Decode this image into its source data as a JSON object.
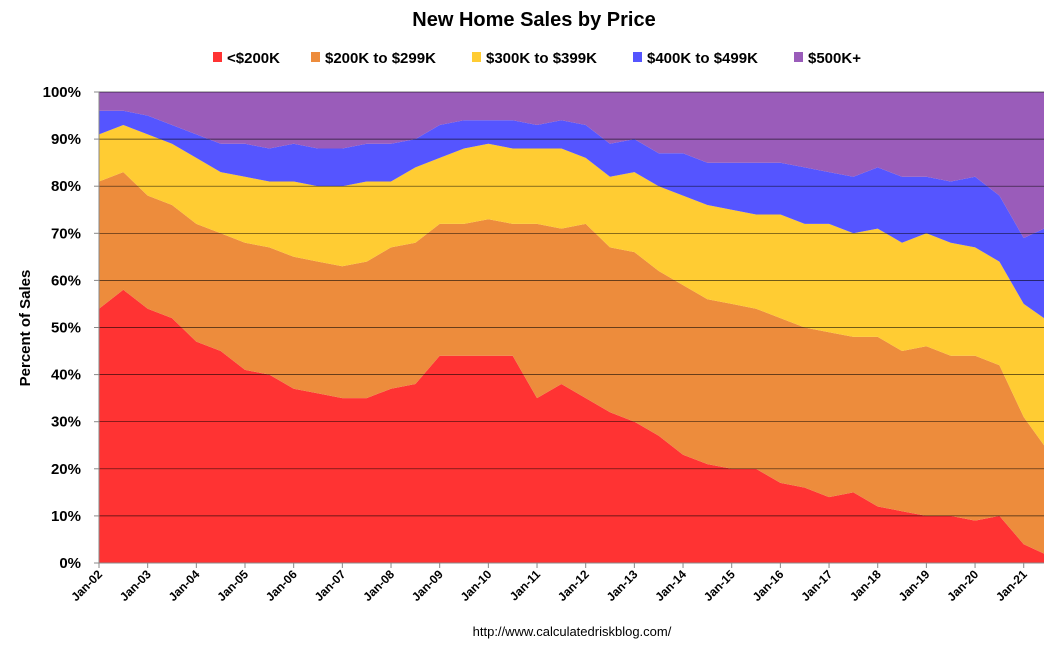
{
  "chart_data": {
    "type": "area",
    "stacked": "percent",
    "title": "New Home Sales by Price",
    "ylabel": "Percent of Sales",
    "xlabel": "",
    "source": "http://www.calculatedriskblog.com/",
    "ylim": [
      0,
      100
    ],
    "y_ticks": [
      "0%",
      "10%",
      "20%",
      "30%",
      "40%",
      "50%",
      "60%",
      "70%",
      "80%",
      "90%",
      "100%"
    ],
    "x_ticks": [
      "Jan-02",
      "Jan-03",
      "Jan-04",
      "Jan-05",
      "Jan-06",
      "Jan-07",
      "Jan-08",
      "Jan-09",
      "Jan-10",
      "Jan-11",
      "Jan-12",
      "Jan-13",
      "Jan-14",
      "Jan-15",
      "Jan-16",
      "Jan-17",
      "Jan-18",
      "Jan-19",
      "Jan-20",
      "Jan-21"
    ],
    "x": [
      "Jan-02",
      "Jul-02",
      "Jan-03",
      "Jul-03",
      "Jan-04",
      "Jul-04",
      "Jan-05",
      "Jul-05",
      "Jan-06",
      "Jul-06",
      "Jan-07",
      "Jul-07",
      "Jan-08",
      "Jul-08",
      "Jan-09",
      "Jul-09",
      "Jan-10",
      "Jul-10",
      "Jan-11",
      "Jul-11",
      "Jan-12",
      "Jul-12",
      "Jan-13",
      "Jul-13",
      "Jan-14",
      "Jul-14",
      "Jan-15",
      "Jul-15",
      "Jan-16",
      "Jul-16",
      "Jan-17",
      "Jul-17",
      "Jan-18",
      "Jul-18",
      "Jan-19",
      "Jul-19",
      "Jan-20",
      "Jul-20",
      "Jan-21",
      "Jun-21"
    ],
    "legend_position": "top",
    "grid": true,
    "series": [
      {
        "name": "<$200K",
        "color": "#ff3333",
        "values": [
          54,
          58,
          54,
          52,
          47,
          45,
          41,
          40,
          37,
          36,
          35,
          35,
          37,
          38,
          44,
          44,
          44,
          44,
          35,
          38,
          35,
          32,
          30,
          27,
          23,
          21,
          20,
          20,
          17,
          16,
          14,
          15,
          12,
          11,
          10,
          10,
          9,
          10,
          4,
          2
        ]
      },
      {
        "name": "$200K to $299K",
        "color": "#ed8c3c",
        "values": [
          27,
          25,
          24,
          24,
          25,
          25,
          27,
          27,
          28,
          28,
          28,
          29,
          30,
          30,
          28,
          28,
          29,
          28,
          37,
          33,
          37,
          35,
          36,
          35,
          36,
          35,
          35,
          34,
          35,
          34,
          35,
          33,
          36,
          34,
          36,
          34,
          35,
          32,
          27,
          23
        ]
      },
      {
        "name": "$300K to $399K",
        "color": "#ffcc33",
        "values": [
          10,
          10,
          13,
          13,
          14,
          13,
          14,
          14,
          16,
          16,
          17,
          17,
          14,
          16,
          14,
          16,
          16,
          16,
          16,
          17,
          14,
          15,
          17,
          18,
          19,
          20,
          20,
          20,
          22,
          22,
          23,
          22,
          23,
          23,
          24,
          24,
          23,
          22,
          24,
          27
        ]
      },
      {
        "name": "$400K to $499K",
        "color": "#5555ff",
        "values": [
          5,
          3,
          4,
          4,
          5,
          6,
          7,
          7,
          8,
          8,
          8,
          8,
          8,
          6,
          7,
          6,
          5,
          6,
          5,
          6,
          7,
          7,
          7,
          7,
          9,
          9,
          10,
          11,
          11,
          12,
          11,
          12,
          13,
          14,
          12,
          13,
          15,
          14,
          14,
          19
        ]
      },
      {
        "name": "$500K+",
        "color": "#9a5cba",
        "values": [
          4,
          4,
          5,
          7,
          9,
          11,
          11,
          12,
          11,
          12,
          12,
          11,
          11,
          10,
          7,
          6,
          6,
          6,
          7,
          6,
          7,
          11,
          10,
          13,
          13,
          15,
          15,
          15,
          15,
          16,
          17,
          18,
          16,
          18,
          18,
          19,
          18,
          22,
          31,
          29
        ]
      }
    ]
  }
}
